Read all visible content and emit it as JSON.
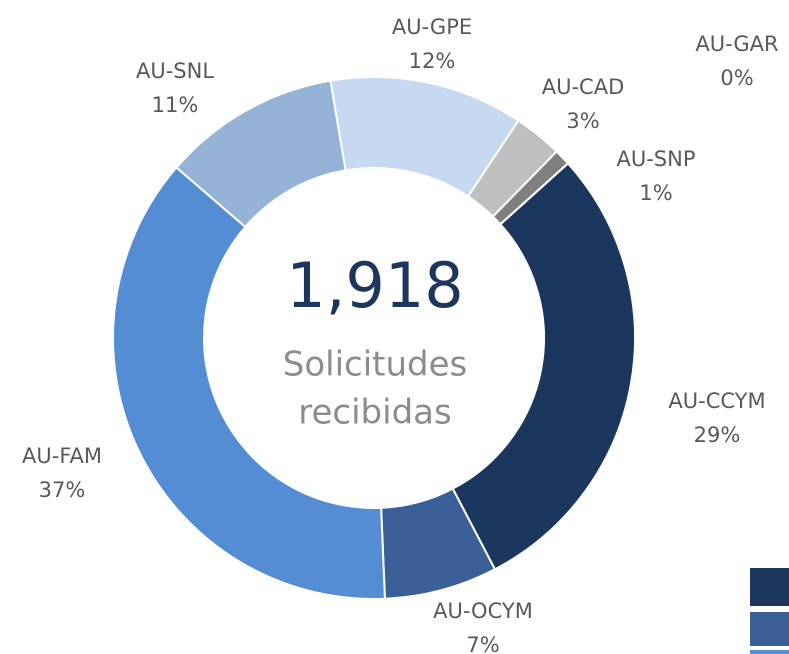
{
  "chart_data": {
    "type": "pie",
    "categories": [
      "AU-CCYM",
      "AU-OCYM",
      "AU-FAM",
      "AU-SNL",
      "AU-GPE",
      "AU-CAD",
      "AU-SNP",
      "AU-GAR"
    ],
    "values": [
      29,
      7,
      37,
      11,
      12,
      3,
      1,
      0
    ],
    "value_labels": [
      "29%",
      "7%",
      "37%",
      "11%",
      "12%",
      "3%",
      "1%",
      "0%"
    ],
    "colors": [
      "#1c375e",
      "#3a6097",
      "#548dd4",
      "#95b3d7",
      "#c6d9f1",
      "#bfbfbf",
      "#7f7f7f",
      "#c5d1ea"
    ],
    "center_text": "1,918",
    "center_caption": [
      "Solicitudes",
      "recibidas"
    ]
  }
}
